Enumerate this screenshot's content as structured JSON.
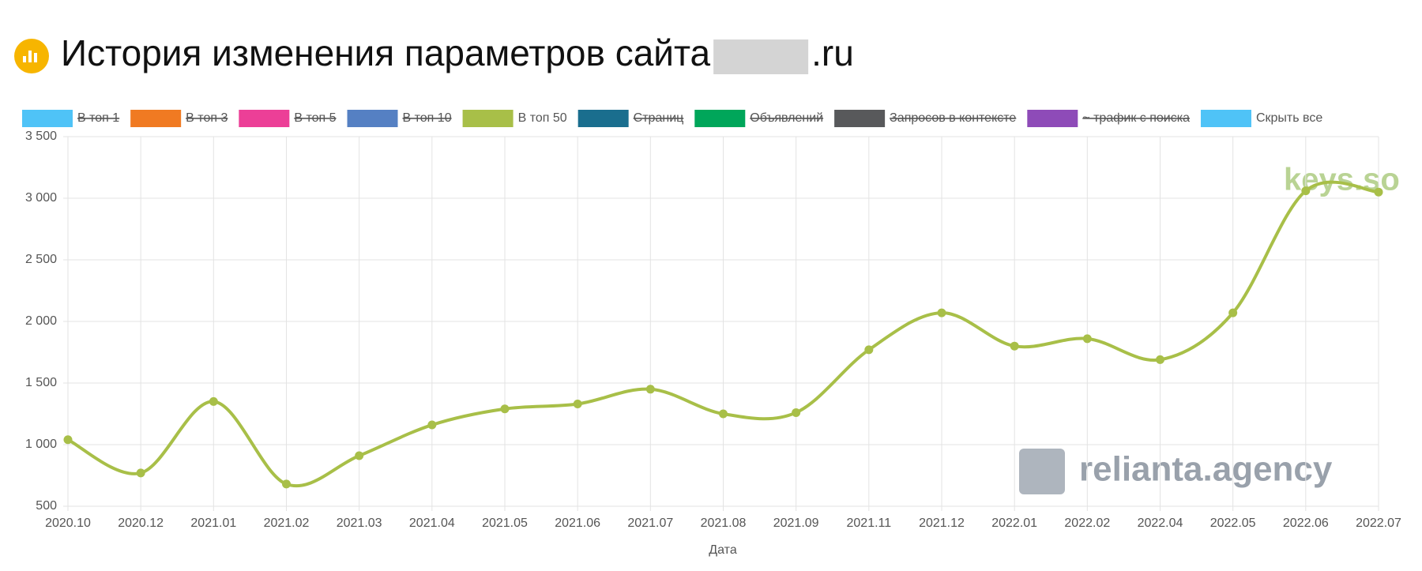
{
  "chart_data": {
    "type": "line",
    "title": "История изменения параметров сайта",
    "title_suffix": ".ru",
    "x_label": "Дата",
    "categories": [
      "2020.10",
      "2020.12",
      "2021.01",
      "2021.02",
      "2021.03",
      "2021.04",
      "2021.05",
      "2021.06",
      "2021.07",
      "2021.08",
      "2021.09",
      "2021.11",
      "2021.12",
      "2022.01",
      "2022.02",
      "2022.04",
      "2022.05",
      "2022.06",
      "2022.07"
    ],
    "series": [
      {
        "name": "В топ 1",
        "color": "#4fc3f7",
        "hidden": true
      },
      {
        "name": "В топ 3",
        "color": "#f07a22",
        "hidden": true
      },
      {
        "name": "В топ 5",
        "color": "#ec3f97",
        "hidden": true
      },
      {
        "name": "В топ 10",
        "color": "#5580c3",
        "hidden": true
      },
      {
        "name": "В топ 50",
        "color": "#a8bf48",
        "hidden": false,
        "values": [
          1040,
          770,
          1350,
          680,
          910,
          1160,
          1290,
          1330,
          1450,
          1250,
          1260,
          1770,
          2070,
          1800,
          1860,
          1690,
          2070,
          3060,
          3050
        ]
      },
      {
        "name": "Страниц",
        "color": "#1a6e8e",
        "hidden": true
      },
      {
        "name": "Объявлений",
        "color": "#00a65a",
        "hidden": true
      },
      {
        "name": "Запросов в контексте",
        "color": "#58595b",
        "hidden": true
      },
      {
        "name": "~ трафик с поиска",
        "color": "#8e4bb8",
        "hidden": true
      }
    ],
    "hide_all_button": {
      "label": "Скрыть все",
      "color": "#4fc3f7"
    },
    "ylim": [
      500,
      3500
    ],
    "yticks": [
      500,
      {
        "value": 1000,
        "label": "1 000"
      },
      {
        "value": 1500,
        "label": "1 500"
      },
      {
        "value": 2000,
        "label": "2 000"
      },
      {
        "value": 2500,
        "label": "2 500"
      },
      {
        "value": 3000,
        "label": "3 000"
      },
      {
        "value": 3500,
        "label": "3 500"
      }
    ],
    "grid": true,
    "smooth": true,
    "watermarks": [
      "keys.so",
      "relianta.agency"
    ]
  }
}
